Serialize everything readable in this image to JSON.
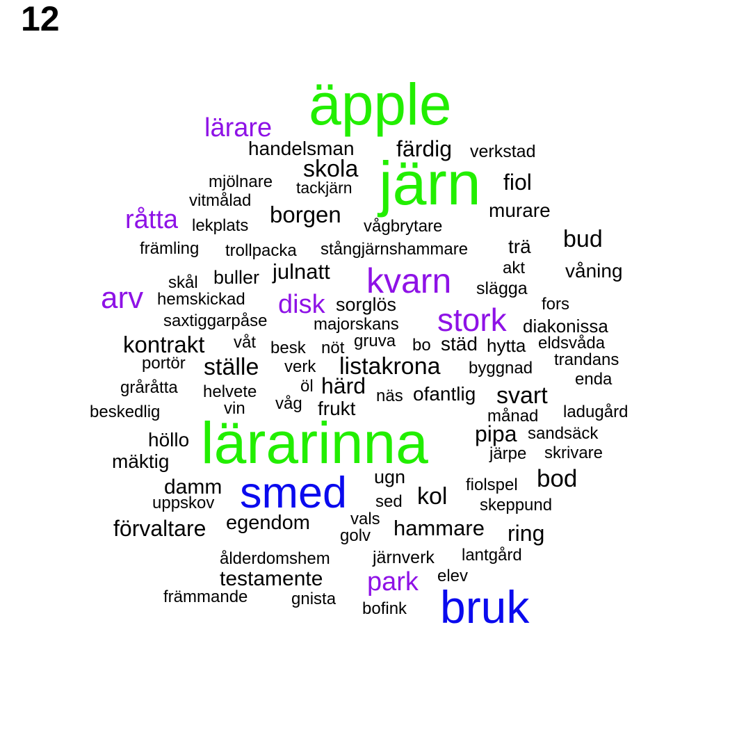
{
  "page_number": "12",
  "colors": {
    "green": "#22ee00",
    "purple": "#8e12e6",
    "blue": "#0a0aee",
    "black": "#000000"
  },
  "words": [
    {
      "text": "äpple",
      "color": "green"
    },
    {
      "text": "lärare",
      "color": "purple"
    },
    {
      "text": "handelsman",
      "color": "black"
    },
    {
      "text": "färdig",
      "color": "black"
    },
    {
      "text": "verkstad",
      "color": "black"
    },
    {
      "text": "skola",
      "color": "black"
    },
    {
      "text": "järn",
      "color": "green"
    },
    {
      "text": "mjölnare",
      "color": "black"
    },
    {
      "text": "tackjärn",
      "color": "black"
    },
    {
      "text": "fiol",
      "color": "black"
    },
    {
      "text": "vitmålad",
      "color": "black"
    },
    {
      "text": "råtta",
      "color": "purple"
    },
    {
      "text": "borgen",
      "color": "black"
    },
    {
      "text": "murare",
      "color": "black"
    },
    {
      "text": "lekplats",
      "color": "black"
    },
    {
      "text": "vågbrytare",
      "color": "black"
    },
    {
      "text": "bud",
      "color": "black"
    },
    {
      "text": "främling",
      "color": "black"
    },
    {
      "text": "trollpacka",
      "color": "black"
    },
    {
      "text": "stångjärnshammare",
      "color": "black"
    },
    {
      "text": "trä",
      "color": "black"
    },
    {
      "text": "julnatt",
      "color": "black"
    },
    {
      "text": "akt",
      "color": "black"
    },
    {
      "text": "buller",
      "color": "black"
    },
    {
      "text": "kvarn",
      "color": "purple"
    },
    {
      "text": "våning",
      "color": "black"
    },
    {
      "text": "skål",
      "color": "black"
    },
    {
      "text": "slägga",
      "color": "black"
    },
    {
      "text": "arv",
      "color": "purple"
    },
    {
      "text": "hemskickad",
      "color": "black"
    },
    {
      "text": "disk",
      "color": "purple"
    },
    {
      "text": "sorglös",
      "color": "black"
    },
    {
      "text": "fors",
      "color": "black"
    },
    {
      "text": "stork",
      "color": "purple"
    },
    {
      "text": "saxtiggarpåse",
      "color": "black"
    },
    {
      "text": "majorskans",
      "color": "black"
    },
    {
      "text": "diakonissa",
      "color": "black"
    },
    {
      "text": "kontrakt",
      "color": "black"
    },
    {
      "text": "våt",
      "color": "black"
    },
    {
      "text": "gruva",
      "color": "black"
    },
    {
      "text": "besk",
      "color": "black"
    },
    {
      "text": "nöt",
      "color": "black"
    },
    {
      "text": "bo",
      "color": "black"
    },
    {
      "text": "städ",
      "color": "black"
    },
    {
      "text": "hytta",
      "color": "black"
    },
    {
      "text": "eldsvåda",
      "color": "black"
    },
    {
      "text": "portör",
      "color": "black"
    },
    {
      "text": "ställe",
      "color": "black"
    },
    {
      "text": "verk",
      "color": "black"
    },
    {
      "text": "listakrona",
      "color": "black"
    },
    {
      "text": "byggnad",
      "color": "black"
    },
    {
      "text": "trandans",
      "color": "black"
    },
    {
      "text": "enda",
      "color": "black"
    },
    {
      "text": "gråråtta",
      "color": "black"
    },
    {
      "text": "helvete",
      "color": "black"
    },
    {
      "text": "öl",
      "color": "black"
    },
    {
      "text": "härd",
      "color": "black"
    },
    {
      "text": "näs",
      "color": "black"
    },
    {
      "text": "ofantlig",
      "color": "black"
    },
    {
      "text": "svart",
      "color": "black"
    },
    {
      "text": "våg",
      "color": "black"
    },
    {
      "text": "frukt",
      "color": "black"
    },
    {
      "text": "beskedlig",
      "color": "black"
    },
    {
      "text": "vin",
      "color": "black"
    },
    {
      "text": "månad",
      "color": "black"
    },
    {
      "text": "ladugård",
      "color": "black"
    },
    {
      "text": "lärarinna",
      "color": "green"
    },
    {
      "text": "pipa",
      "color": "black"
    },
    {
      "text": "sandsäck",
      "color": "black"
    },
    {
      "text": "höllo",
      "color": "black"
    },
    {
      "text": "järpe",
      "color": "black"
    },
    {
      "text": "skrivare",
      "color": "black"
    },
    {
      "text": "mäktig",
      "color": "black"
    },
    {
      "text": "ugn",
      "color": "black"
    },
    {
      "text": "bod",
      "color": "black"
    },
    {
      "text": "damm",
      "color": "black"
    },
    {
      "text": "smed",
      "color": "blue"
    },
    {
      "text": "fiolspel",
      "color": "black"
    },
    {
      "text": "kol",
      "color": "black"
    },
    {
      "text": "uppskov",
      "color": "black"
    },
    {
      "text": "sed",
      "color": "black"
    },
    {
      "text": "skeppund",
      "color": "black"
    },
    {
      "text": "vals",
      "color": "black"
    },
    {
      "text": "förvaltare",
      "color": "black"
    },
    {
      "text": "egendom",
      "color": "black"
    },
    {
      "text": "hammare",
      "color": "black"
    },
    {
      "text": "ring",
      "color": "black"
    },
    {
      "text": "golv",
      "color": "black"
    },
    {
      "text": "lantgård",
      "color": "black"
    },
    {
      "text": "ålderdomshem",
      "color": "black"
    },
    {
      "text": "järnverk",
      "color": "black"
    },
    {
      "text": "testamente",
      "color": "black"
    },
    {
      "text": "park",
      "color": "purple"
    },
    {
      "text": "elev",
      "color": "black"
    },
    {
      "text": "främmande",
      "color": "black"
    },
    {
      "text": "gnista",
      "color": "black"
    },
    {
      "text": "bruk",
      "color": "blue"
    },
    {
      "text": "bofink",
      "color": "black"
    }
  ]
}
